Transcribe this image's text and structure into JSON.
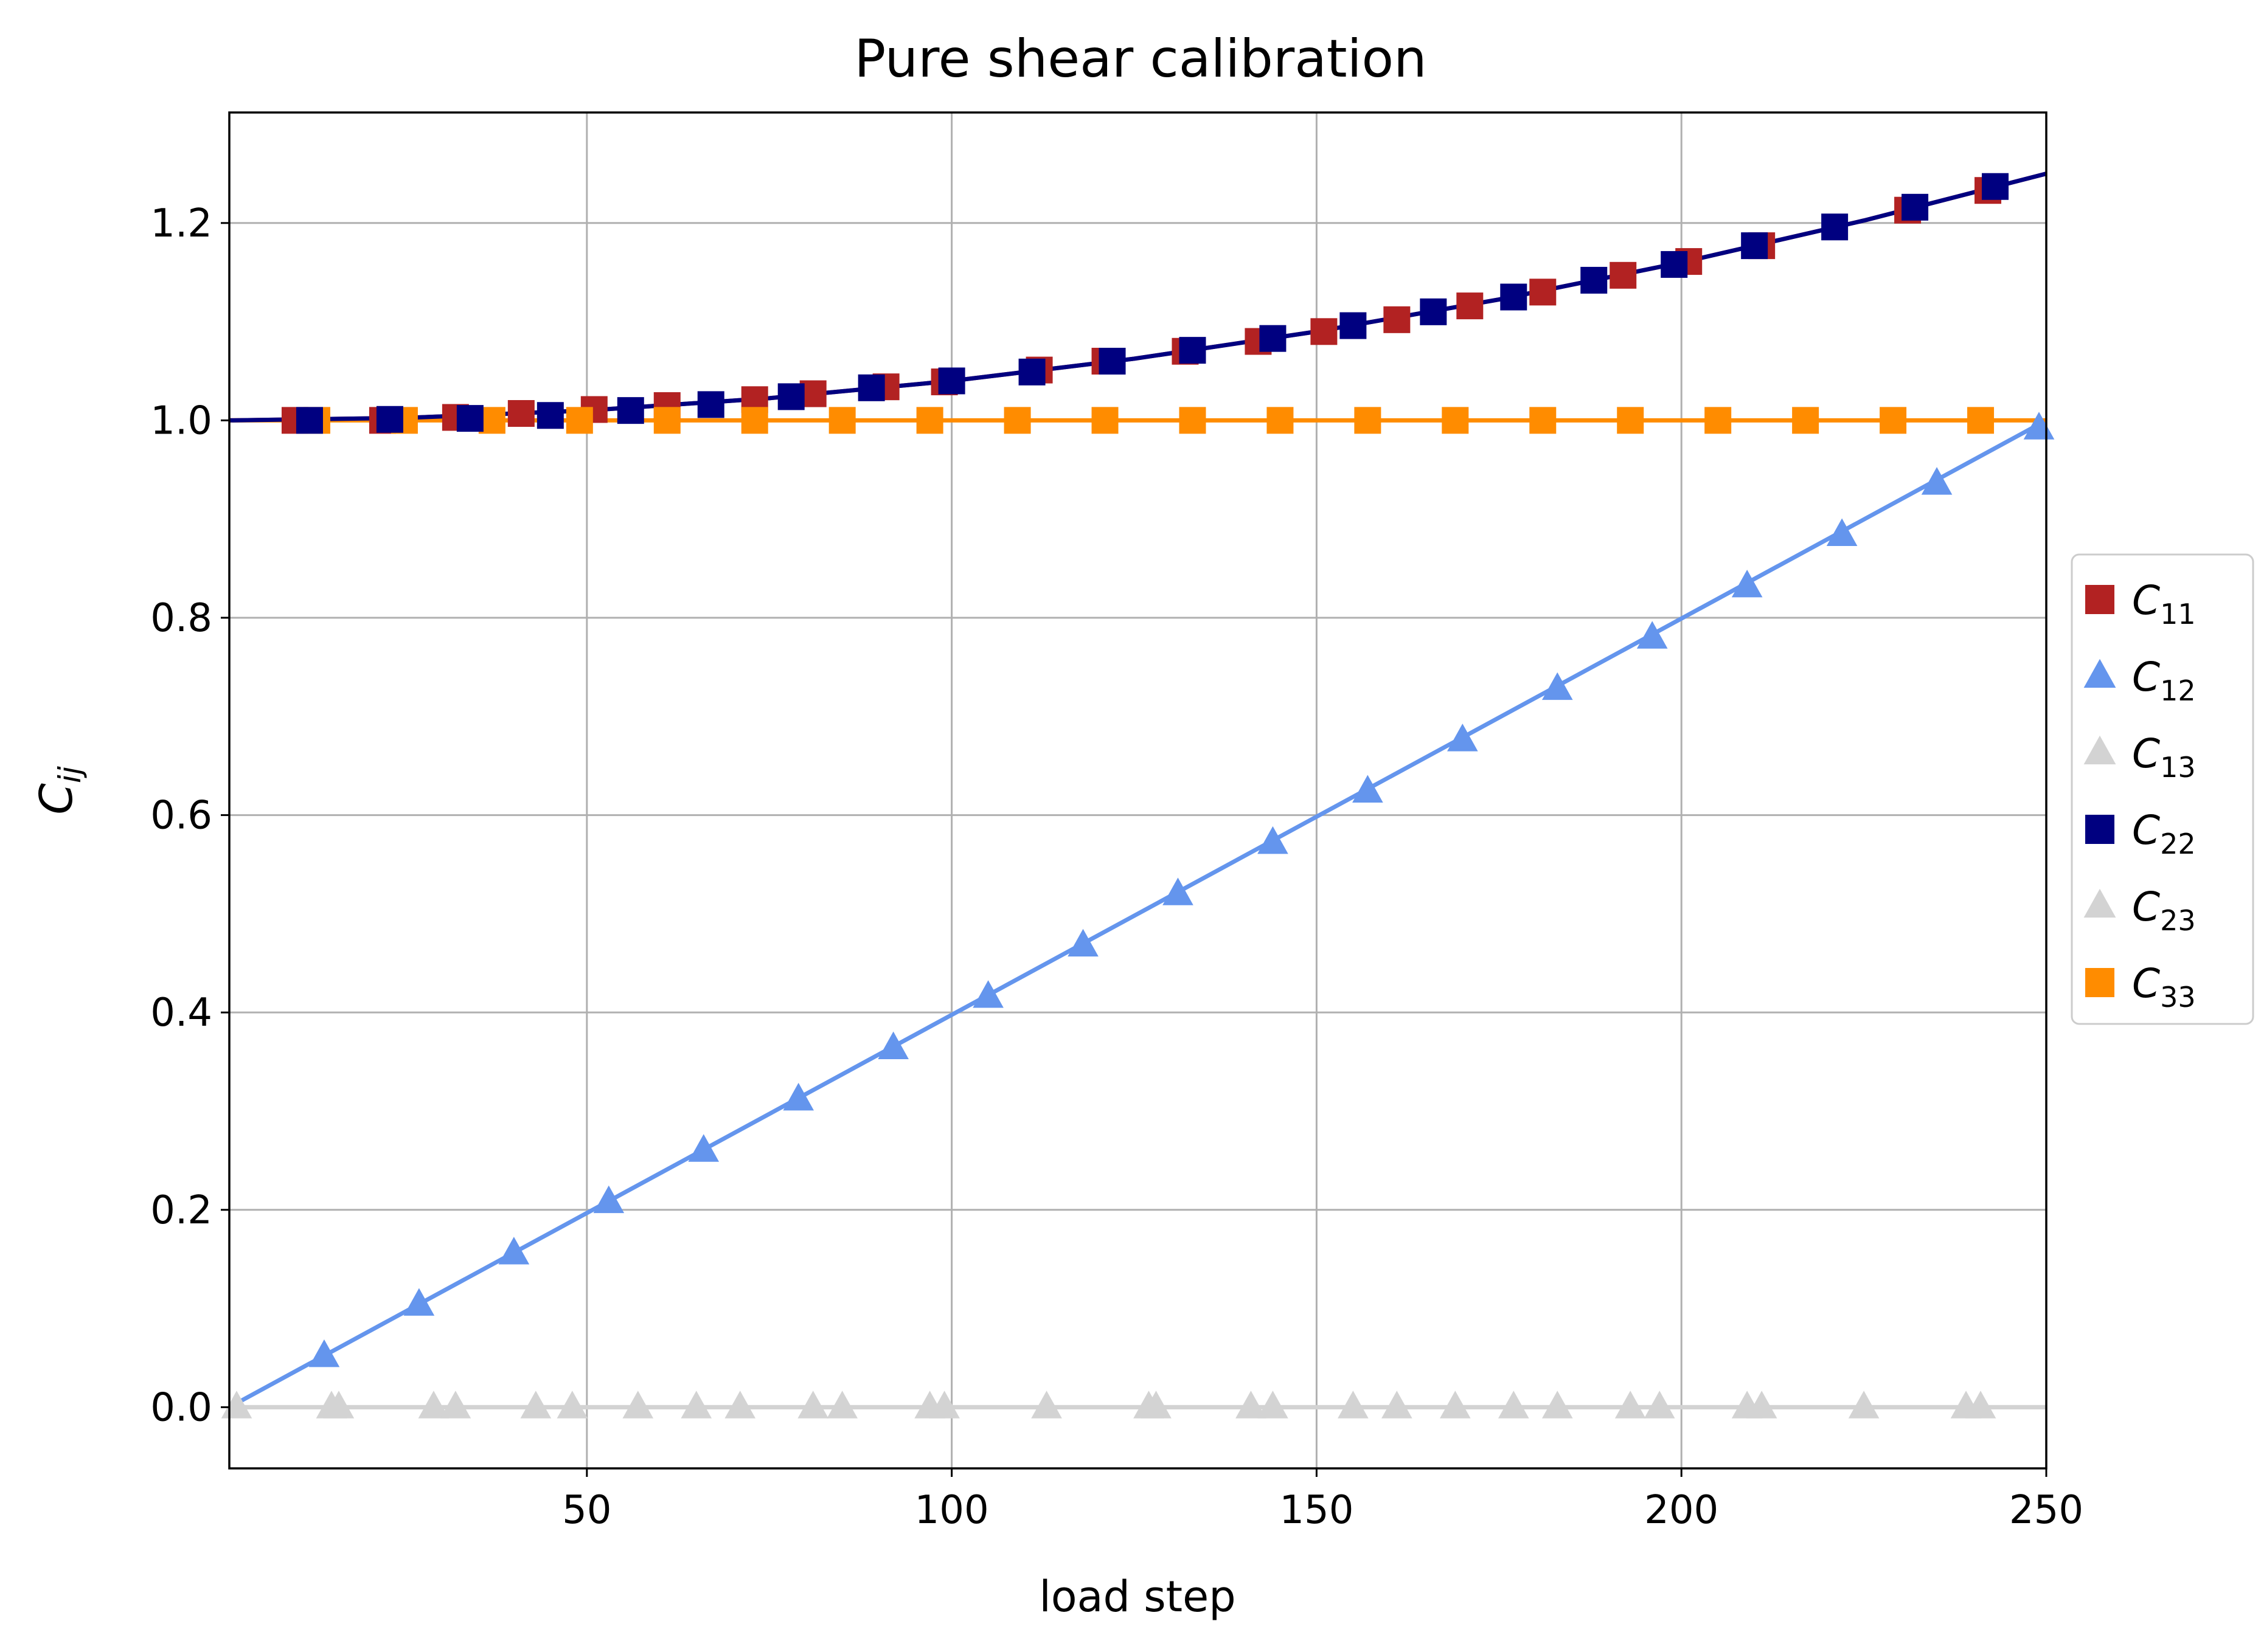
{
  "chart_data": {
    "type": "line",
    "title": "Pure shear calibration",
    "xlabel": "load step",
    "ylabel": {
      "base": "C",
      "sub": "ij"
    },
    "xlim": [
      1,
      250
    ],
    "ylim": [
      -0.062,
      1.312
    ],
    "xticks": [
      50,
      100,
      150,
      200,
      250
    ],
    "yticks": [
      0.0,
      0.2,
      0.4,
      0.6,
      0.8,
      1.0,
      1.2
    ],
    "ytick_labels": [
      "0.0",
      "0.2",
      "0.4",
      "0.6",
      "0.8",
      "1.0",
      "1.2"
    ],
    "grid": true,
    "legend_position": "right, outside plot",
    "series": [
      {
        "name": "C11",
        "label_base": "C",
        "label_sub": "11",
        "color": "#b22222",
        "marker": "square",
        "line": {
          "x": [
            1,
            25,
            50,
            75,
            100,
            125,
            150,
            175,
            200,
            225,
            250
          ],
          "y": [
            1.0,
            1.0025,
            1.01,
            1.0225,
            1.04,
            1.0625,
            1.09,
            1.1225,
            1.16,
            1.2025,
            1.25
          ]
        },
        "markers_x": [
          10,
          22,
          32,
          41,
          51,
          61,
          73,
          81,
          91,
          99,
          112,
          121,
          132,
          142,
          151,
          161,
          171,
          181,
          192,
          201,
          211,
          231,
          242
        ],
        "markers_y": [
          1.0,
          1.0,
          1.003,
          1.007,
          1.011,
          1.015,
          1.021,
          1.027,
          1.034,
          1.039,
          1.051,
          1.06,
          1.07,
          1.08,
          1.09,
          1.102,
          1.116,
          1.13,
          1.147,
          1.161,
          1.177,
          1.213,
          1.233
        ]
      },
      {
        "name": "C12",
        "label_base": "C",
        "label_sub": "12",
        "color": "#6495ed",
        "marker": "triangle",
        "line": {
          "x": [
            1,
            250
          ],
          "y": [
            0.0,
            1.0
          ]
        },
        "markers_x": [
          14,
          27,
          40,
          53,
          66,
          79,
          92,
          105,
          118,
          131,
          144,
          157,
          170,
          183,
          196,
          209,
          222,
          235,
          249
        ],
        "markers_y": [
          0.052,
          0.104,
          0.156,
          0.208,
          0.26,
          0.312,
          0.364,
          0.416,
          0.468,
          0.52,
          0.572,
          0.624,
          0.676,
          0.728,
          0.78,
          0.832,
          0.884,
          0.936,
          0.992
        ]
      },
      {
        "name": "C13",
        "label_base": "C",
        "label_sub": "13",
        "color": "#d3d3d3",
        "marker": "triangle",
        "line": {
          "x": [
            1,
            250
          ],
          "y": [
            0.0,
            0.0
          ]
        },
        "markers_x": [
          2,
          15,
          29,
          43,
          57,
          71,
          85,
          99,
          113,
          127,
          141,
          155,
          169,
          183,
          197,
          211,
          225,
          239
        ],
        "markers_y": [
          0,
          0,
          0,
          0,
          0,
          0,
          0,
          0,
          0,
          0,
          0,
          0,
          0,
          0,
          0,
          0,
          0,
          0
        ]
      },
      {
        "name": "C22",
        "label_base": "C",
        "label_sub": "22",
        "color": "#000080",
        "marker": "square",
        "line": {
          "x": [
            1,
            25,
            50,
            75,
            100,
            125,
            150,
            175,
            200,
            225,
            250
          ],
          "y": [
            1.0,
            1.0025,
            1.01,
            1.0225,
            1.04,
            1.0625,
            1.09,
            1.1225,
            1.16,
            1.2025,
            1.25
          ]
        },
        "markers_x": [
          12,
          23,
          34,
          45,
          56,
          67,
          78,
          89,
          100,
          111,
          122,
          133,
          144,
          155,
          166,
          177,
          188,
          199,
          210,
          221,
          232,
          243
        ],
        "markers_y": [
          1.0,
          1.001,
          1.002,
          1.005,
          1.01,
          1.016,
          1.024,
          1.033,
          1.04,
          1.049,
          1.06,
          1.071,
          1.083,
          1.096,
          1.11,
          1.125,
          1.142,
          1.158,
          1.177,
          1.196,
          1.216,
          1.237
        ]
      },
      {
        "name": "C23",
        "label_base": "C",
        "label_sub": "23",
        "color": "#d3d3d3",
        "marker": "triangle",
        "line": {
          "x": [
            1,
            250
          ],
          "y": [
            0.0,
            0.0
          ]
        },
        "markers_x": [
          16,
          32,
          48,
          65,
          81,
          97,
          128,
          144,
          161,
          177,
          193,
          209,
          241
        ],
        "markers_y": [
          0,
          0,
          0,
          0,
          0,
          0,
          0,
          0,
          0,
          0,
          0,
          0,
          0
        ]
      },
      {
        "name": "C33",
        "label_base": "C",
        "label_sub": "33",
        "color": "#ff8c00",
        "marker": "square",
        "line": {
          "x": [
            1,
            250
          ],
          "y": [
            1.0,
            1.0
          ]
        },
        "markers_x": [
          13,
          25,
          37,
          49,
          61,
          73,
          85,
          97,
          109,
          121,
          133,
          145,
          157,
          169,
          181,
          193,
          205,
          217,
          229,
          241
        ],
        "markers_y": [
          1,
          1,
          1,
          1,
          1,
          1,
          1,
          1,
          1,
          1,
          1,
          1,
          1,
          1,
          1,
          1,
          1,
          1,
          1,
          1
        ]
      }
    ]
  }
}
